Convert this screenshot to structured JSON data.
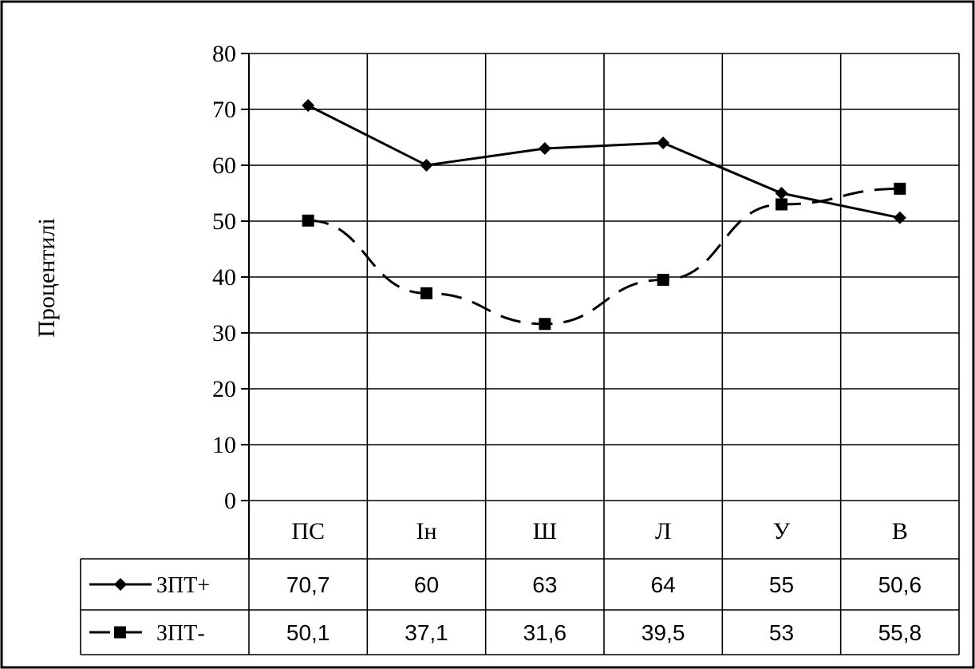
{
  "chart_data": {
    "type": "line",
    "title": "",
    "xlabel": "",
    "ylabel": "Процентилі",
    "ylim": [
      0,
      80
    ],
    "yticks": [
      0,
      10,
      20,
      30,
      40,
      50,
      60,
      70,
      80
    ],
    "categories": [
      "ПС",
      "Ін",
      "Ш",
      "Л",
      "У",
      "В"
    ],
    "grid": true,
    "legend": "data-table-below",
    "series": [
      {
        "name": "ЗПТ+",
        "marker": "diamond",
        "line_style": "solid",
        "values": [
          70.7,
          60,
          63,
          64,
          55,
          50.6
        ],
        "labels": [
          "70,7",
          "60",
          "63",
          "64",
          "55",
          "50,6"
        ]
      },
      {
        "name": "ЗПТ-",
        "marker": "square",
        "line_style": "dashed",
        "values": [
          50.1,
          37.1,
          31.6,
          39.5,
          53,
          55.8
        ],
        "labels": [
          "50,1",
          "37,1",
          "31,6",
          "39,5",
          "53",
          "55,8"
        ]
      }
    ]
  }
}
